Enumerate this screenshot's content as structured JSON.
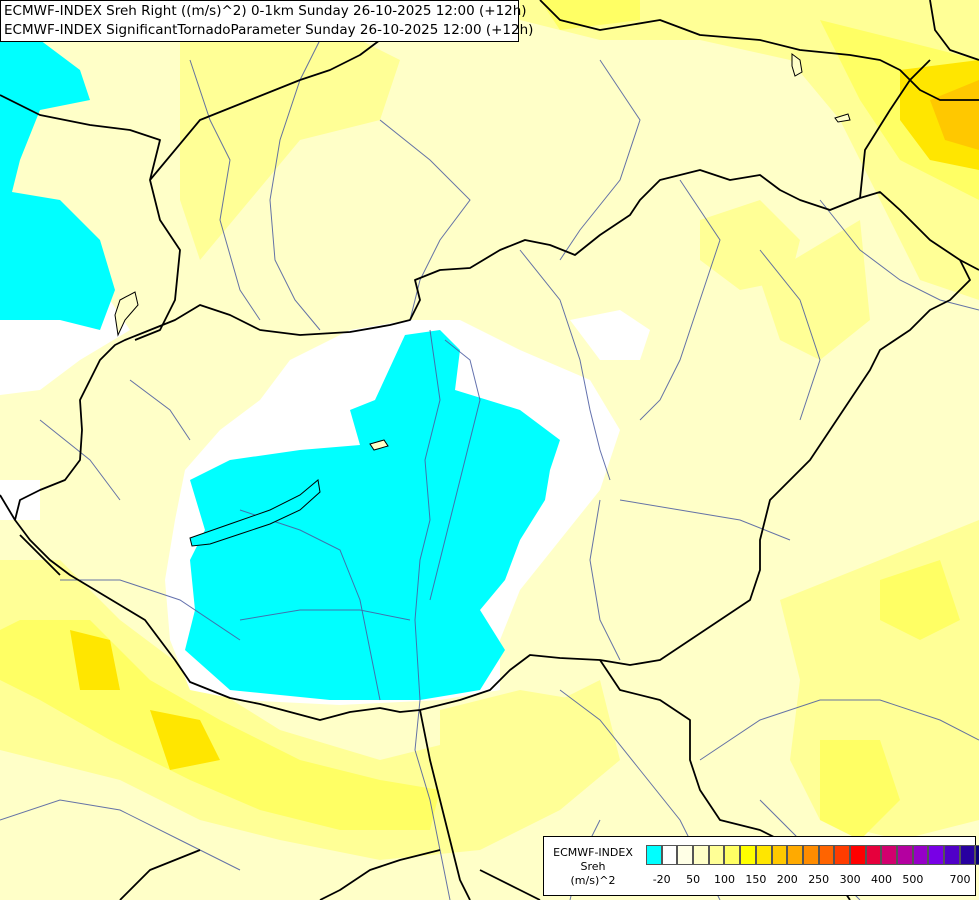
{
  "title_lines": [
    "ECMWF-INDEX Sreh Right ((m/s)^2) 0-1km Sunday 26-10-2025 12:00 (+12h)",
    "ECMWF-INDEX SignificantTornadoParameter Sunday 26-10-2025 12:00 (+12h)"
  ],
  "legend": {
    "label_lines": [
      "ECMWF-INDEX",
      "Sreh",
      "(m/s)^2"
    ],
    "swatch_colors": [
      "#00ffff",
      "#ffffff",
      "#ffffe6",
      "#ffffc8",
      "#ffff96",
      "#ffff64",
      "#ffff00",
      "#ffe600",
      "#ffc800",
      "#ffaa00",
      "#ff8c00",
      "#ff6400",
      "#ff3c00",
      "#ff0000",
      "#e6003c",
      "#d2006e",
      "#b400a0",
      "#9600c8",
      "#7800e6",
      "#5000c8",
      "#2800a0",
      "#0a0078"
    ],
    "tick_labels": [
      "-20",
      "50",
      "100",
      "150",
      "200",
      "250",
      "300",
      "400",
      "500",
      "700"
    ]
  },
  "colors": {
    "background": "#ffffc8",
    "sreh_low": "#00ffff",
    "sreh_zero": "#ffffff",
    "sreh_mid": "#ffff96",
    "sreh_high": "#ffff64",
    "sreh_peak": "#ffe600",
    "sreh_max": "#ffc800",
    "border": "#000000",
    "river": "#4a5aa0"
  }
}
